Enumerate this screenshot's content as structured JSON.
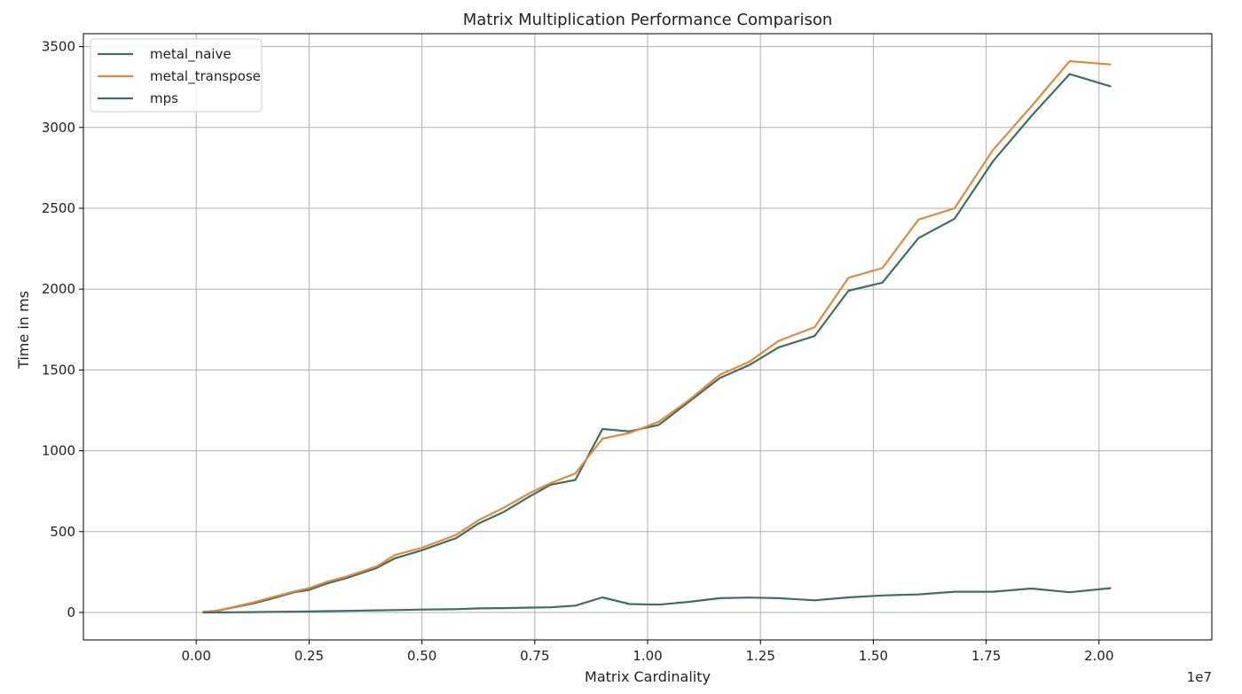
{
  "chart_data": {
    "type": "line",
    "title": "Matrix Multiplication Performance Comparison",
    "xlabel": "Matrix Cardinality",
    "ylabel": "Time in ms",
    "x_offset_label": "1e7",
    "xlim": [
      -0.25,
      2.25
    ],
    "ylim": [
      -170,
      3580
    ],
    "xticks": [
      0.0,
      0.25,
      0.5,
      0.75,
      1.0,
      1.25,
      1.5,
      1.75,
      2.0
    ],
    "xtick_labels": [
      "0.00",
      "0.25",
      "0.50",
      "0.75",
      "1.00",
      "1.25",
      "1.50",
      "1.75",
      "2.00"
    ],
    "yticks": [
      0,
      500,
      1000,
      1500,
      2000,
      2500,
      3000,
      3500
    ],
    "ytick_labels": [
      "0",
      "500",
      "1000",
      "1500",
      "2000",
      "2500",
      "3000",
      "3500"
    ],
    "grid": true,
    "legend_position": "top-left",
    "x": [
      0.016,
      0.047,
      0.08,
      0.124,
      0.16,
      0.217,
      0.25,
      0.29,
      0.33,
      0.4,
      0.44,
      0.5,
      0.576,
      0.625,
      0.68,
      0.74,
      0.785,
      0.84,
      0.9,
      0.96,
      1.025,
      1.09,
      1.16,
      1.225,
      1.29,
      1.37,
      1.445,
      1.52,
      1.6,
      1.68,
      1.765,
      1.85,
      1.935,
      2.025
    ],
    "series": [
      {
        "name": "metal_naive",
        "color": "#3d7062",
        "values": [
          2,
          10,
          30,
          55,
          80,
          125,
          140,
          180,
          210,
          275,
          335,
          385,
          460,
          550,
          620,
          720,
          790,
          820,
          1135,
          1120,
          1160,
          1300,
          1450,
          1530,
          1640,
          1710,
          1990,
          2040,
          2315,
          2435,
          2790,
          3070,
          3330,
          3255
        ]
      },
      {
        "name": "metal_transpose",
        "color": "#e08a3c",
        "values": [
          3,
          12,
          32,
          60,
          88,
          130,
          150,
          190,
          220,
          285,
          355,
          400,
          480,
          570,
          645,
          740,
          800,
          860,
          1075,
          1110,
          1180,
          1310,
          1470,
          1550,
          1680,
          1765,
          2070,
          2130,
          2430,
          2500,
          2860,
          3130,
          3410,
          3390
        ]
      },
      {
        "name": "mps",
        "color": "#3d7062",
        "values": [
          0,
          0,
          1,
          2,
          3,
          5,
          6,
          8,
          10,
          13,
          15,
          18,
          20,
          25,
          27,
          30,
          32,
          42,
          93,
          52,
          48,
          65,
          88,
          92,
          88,
          75,
          93,
          105,
          112,
          128,
          128,
          148,
          125,
          150
        ]
      }
    ]
  }
}
